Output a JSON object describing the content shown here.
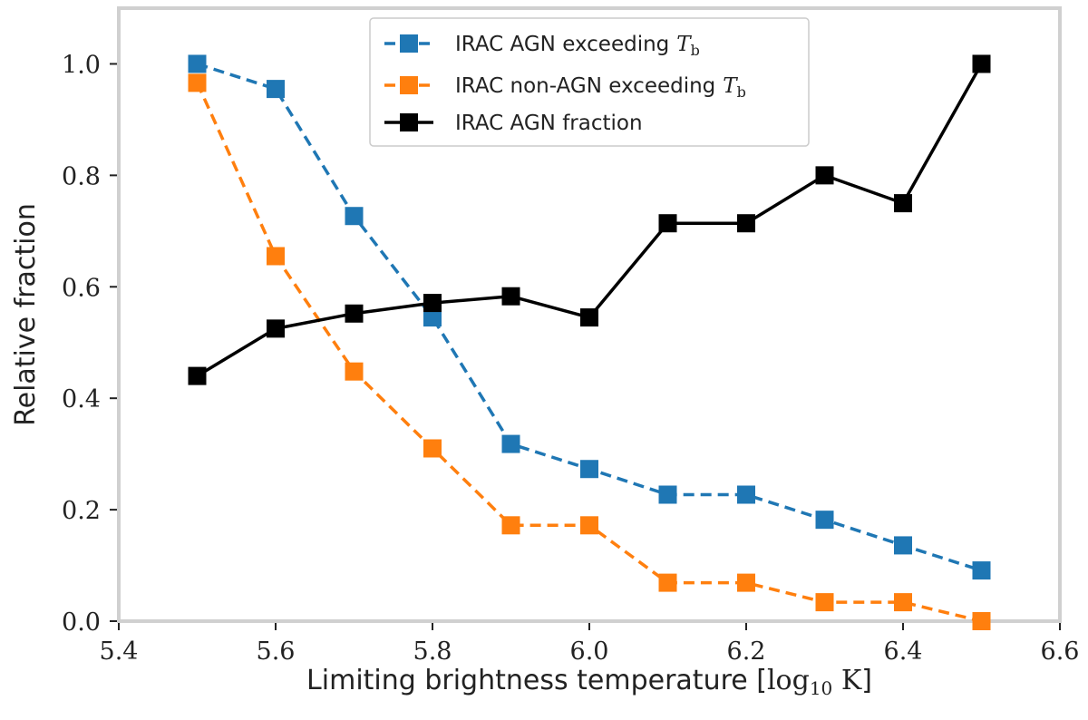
{
  "chart_data": {
    "type": "line",
    "title": "",
    "xlabel": {
      "text": "Limiting brightness temperature [",
      "math": "log",
      "math_sub": "10",
      "unit": " K",
      "suffix": "]"
    },
    "ylabel": "Relative fraction",
    "xlim": [
      5.4,
      6.6
    ],
    "ylim": [
      0.0,
      1.1
    ],
    "xticks": [
      5.4,
      5.6,
      5.8,
      6.0,
      6.2,
      6.4,
      6.6
    ],
    "xtick_labels": [
      "5.4",
      "5.6",
      "5.8",
      "6.0",
      "6.2",
      "6.4",
      "6.6"
    ],
    "yticks": [
      0.0,
      0.2,
      0.4,
      0.6,
      0.8,
      1.0
    ],
    "ytick_labels": [
      "0.0",
      "0.2",
      "0.4",
      "0.6",
      "0.8",
      "1.0"
    ],
    "grid": false,
    "legend_position": "top-center",
    "x": [
      5.5,
      5.6,
      5.7,
      5.8,
      5.9,
      6.0,
      6.1,
      6.2,
      6.3,
      6.4,
      6.5
    ],
    "series": [
      {
        "name": "IRAC AGN exceeding",
        "name_math": "T",
        "name_sub": "b",
        "color": "#1f77b4",
        "style": "dashed",
        "values": [
          1.0,
          0.955,
          0.727,
          0.545,
          0.318,
          0.273,
          0.227,
          0.227,
          0.182,
          0.136,
          0.091
        ]
      },
      {
        "name": "IRAC non-AGN exceeding",
        "name_math": "T",
        "name_sub": "b",
        "color": "#ff7f0e",
        "style": "dashed",
        "values": [
          0.966,
          0.655,
          0.448,
          0.31,
          0.172,
          0.172,
          0.069,
          0.069,
          0.034,
          0.034,
          0.0
        ]
      },
      {
        "name": "IRAC AGN fraction",
        "name_math": "",
        "name_sub": "",
        "color": "#000000",
        "style": "solid",
        "values": [
          0.44,
          0.525,
          0.552,
          0.571,
          0.583,
          0.545,
          0.714,
          0.714,
          0.8,
          0.75,
          1.0
        ]
      }
    ]
  }
}
